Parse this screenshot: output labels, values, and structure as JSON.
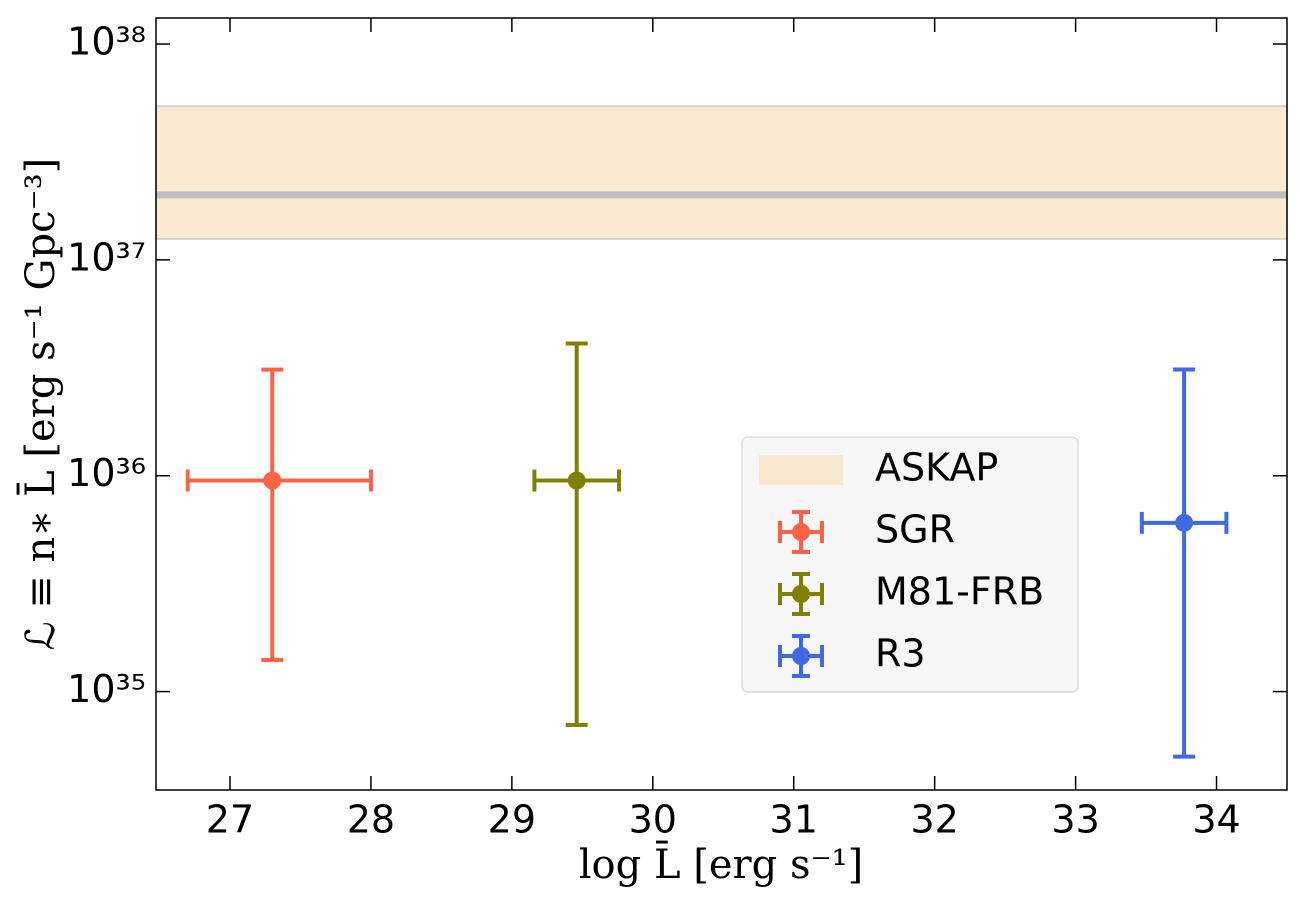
{
  "chart_data": {
    "type": "errorbar",
    "x_label": "log L̄ [erg s⁻¹]",
    "y_label": "ℒ ≡ n∗ L̄ [erg s⁻¹ Gpc⁻³]",
    "xlim": [
      26.475,
      34.5
    ],
    "xticks": [
      27,
      28,
      29,
      30,
      31,
      32,
      33,
      34
    ],
    "ylim": [
      3.5e+34,
      1.32e+38
    ],
    "log_y": true,
    "yticks": [
      {
        "value": 1e+35,
        "label": "10³⁵"
      },
      {
        "value": 1e+36,
        "label": "10³⁶"
      },
      {
        "value": 1e+37,
        "label": "10³⁷"
      },
      {
        "value": 1e+38,
        "label": "10³⁸"
      }
    ],
    "band": {
      "name": "ASKAP",
      "range": [
        1.25e+37,
        5.16e+37
      ],
      "line": 2e+37,
      "color": "#f5deb3",
      "line_color": "#bfbfbf"
    },
    "series": [
      {
        "name": "SGR",
        "color": "#ff6347",
        "x": 27.3,
        "xerr": [
          0.6,
          0.7
        ],
        "y": 9.5e+35,
        "yerr": [
          8.1e+35,
          2.15e+36
        ]
      },
      {
        "name": "M81-FRB",
        "color": "#808000",
        "x": 29.46,
        "xerr": [
          0.3,
          0.3
        ],
        "y": 9.5e+35,
        "yerr": [
          8.8e+35,
          3.15e+36
        ]
      },
      {
        "name": "R3",
        "color": "#4169e1",
        "x": 33.77,
        "xerr": [
          0.3,
          0.3
        ],
        "y": 6.05e+35,
        "yerr": [
          5.55e+35,
          2.5e+36
        ]
      }
    ],
    "legend": "center right"
  }
}
